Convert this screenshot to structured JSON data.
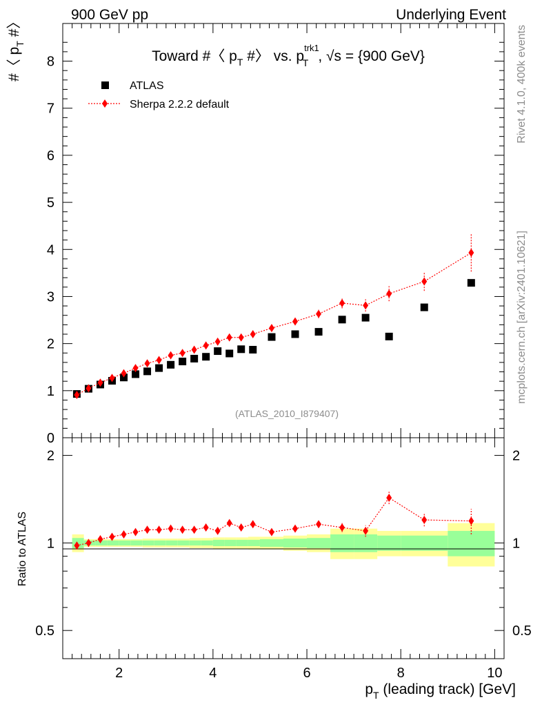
{
  "header": {
    "left": "900 GeV pp",
    "right": "Underlying Event"
  },
  "side": {
    "rivet": "Rivet 4.1.0,  400k events",
    "mcplots": "mcplots.cern.ch [arXiv:2401.10621]"
  },
  "chart_data": [
    {
      "type": "scatter",
      "title_parts": {
        "main": "Toward #〈 p",
        "sub1": "T",
        "mid": " #〉 vs. p",
        "sup": "trk1",
        "sub2": "T",
        "tail": ", √s = {900 GeV}"
      },
      "analysis": "(ATLAS_2010_I879407)",
      "ylabel_parts": {
        "main": "#〈 p",
        "sub": "T",
        "tail": " #〉"
      },
      "xlim": [
        0.8,
        10.2
      ],
      "ylim": [
        0,
        8.8
      ],
      "yticks": [
        1,
        2,
        3,
        4,
        5,
        6,
        7,
        8
      ],
      "ytick_bottom": "0",
      "legend": [
        {
          "name": "ATLAS",
          "marker": "square",
          "color": "#000000"
        },
        {
          "name": "Sherpa 2.2.2 default",
          "marker": "diamond",
          "color": "#ff0000"
        }
      ],
      "series": [
        {
          "name": "ATLAS",
          "x": [
            1.1,
            1.35,
            1.6,
            1.85,
            2.1,
            2.35,
            2.6,
            2.85,
            3.1,
            3.35,
            3.6,
            3.85,
            4.1,
            4.35,
            4.6,
            4.85,
            5.25,
            5.75,
            6.25,
            6.75,
            7.25,
            7.75,
            8.5,
            9.5
          ],
          "y": [
            0.93,
            1.04,
            1.13,
            1.21,
            1.28,
            1.35,
            1.41,
            1.48,
            1.55,
            1.62,
            1.68,
            1.72,
            1.84,
            1.79,
            1.88,
            1.87,
            2.14,
            2.2,
            2.25,
            2.51,
            2.55,
            2.15,
            2.77,
            3.29
          ]
        },
        {
          "name": "Sherpa 2.2.2 default",
          "x": [
            1.1,
            1.35,
            1.6,
            1.85,
            2.1,
            2.35,
            2.6,
            2.85,
            3.1,
            3.35,
            3.6,
            3.85,
            4.1,
            4.35,
            4.6,
            4.85,
            5.25,
            5.75,
            6.25,
            6.75,
            7.25,
            7.75,
            8.5,
            9.5
          ],
          "y": [
            0.91,
            1.05,
            1.17,
            1.27,
            1.37,
            1.48,
            1.58,
            1.65,
            1.75,
            1.8,
            1.87,
            1.96,
            2.04,
            2.13,
            2.13,
            2.2,
            2.33,
            2.47,
            2.63,
            2.86,
            2.81,
            3.06,
            3.32,
            3.93
          ],
          "yerr": [
            0.03,
            0.03,
            0.03,
            0.03,
            0.03,
            0.03,
            0.03,
            0.03,
            0.04,
            0.04,
            0.04,
            0.04,
            0.05,
            0.05,
            0.05,
            0.05,
            0.06,
            0.07,
            0.09,
            0.11,
            0.13,
            0.16,
            0.2,
            0.4
          ]
        }
      ]
    },
    {
      "type": "scatter",
      "ylabel": "Ratio to ATLAS",
      "xlabel_parts": {
        "main": "p",
        "sub": "T",
        "tail": " (leading track) [GeV]"
      },
      "xlim": [
        0.8,
        10.2
      ],
      "ylim": [
        0.4,
        2.3
      ],
      "yscale": "log",
      "yticks": [
        0.5,
        1,
        2
      ],
      "ytick_labels": [
        "0.5",
        "1",
        "2"
      ],
      "xticks": [
        2,
        4,
        6,
        8,
        10
      ],
      "xtick_labels": [
        "2",
        "4",
        "6",
        "8",
        "10"
      ],
      "bands": {
        "x_edges": [
          1.0,
          1.25,
          1.5,
          1.75,
          2.0,
          2.25,
          2.5,
          2.75,
          3.0,
          3.25,
          3.5,
          3.75,
          4.0,
          4.25,
          4.5,
          4.75,
          5.0,
          5.5,
          6.0,
          6.5,
          7.0,
          7.5,
          8.0,
          9.0,
          10.0
        ],
        "inner": [
          0.04,
          0.02,
          0.02,
          0.02,
          0.02,
          0.02,
          0.02,
          0.02,
          0.02,
          0.02,
          0.02,
          0.02,
          0.025,
          0.025,
          0.025,
          0.025,
          0.03,
          0.035,
          0.04,
          0.07,
          0.07,
          0.06,
          0.06,
          0.1
        ],
        "outer": [
          0.07,
          0.03,
          0.03,
          0.03,
          0.03,
          0.03,
          0.035,
          0.035,
          0.035,
          0.035,
          0.04,
          0.04,
          0.045,
          0.045,
          0.045,
          0.05,
          0.05,
          0.06,
          0.07,
          0.12,
          0.12,
          0.1,
          0.1,
          0.17
        ],
        "inner_color": "#99ff99",
        "outer_color": "#ffff99"
      },
      "series": [
        {
          "name": "Sherpa 2.2.2 default / ATLAS",
          "x": [
            1.1,
            1.35,
            1.6,
            1.85,
            2.1,
            2.35,
            2.6,
            2.85,
            3.1,
            3.35,
            3.6,
            3.85,
            4.1,
            4.35,
            4.6,
            4.85,
            5.25,
            5.75,
            6.25,
            6.75,
            7.25,
            7.75,
            8.5,
            9.5
          ],
          "y": [
            0.98,
            1.0,
            1.03,
            1.05,
            1.07,
            1.09,
            1.11,
            1.11,
            1.12,
            1.11,
            1.11,
            1.13,
            1.1,
            1.17,
            1.13,
            1.16,
            1.09,
            1.12,
            1.16,
            1.13,
            1.1,
            1.43,
            1.2,
            1.19
          ],
          "yerr": [
            0.03,
            0.03,
            0.02,
            0.02,
            0.02,
            0.02,
            0.02,
            0.02,
            0.02,
            0.02,
            0.02,
            0.02,
            0.02,
            0.02,
            0.02,
            0.02,
            0.02,
            0.02,
            0.03,
            0.04,
            0.05,
            0.07,
            0.06,
            0.12
          ]
        }
      ]
    }
  ]
}
